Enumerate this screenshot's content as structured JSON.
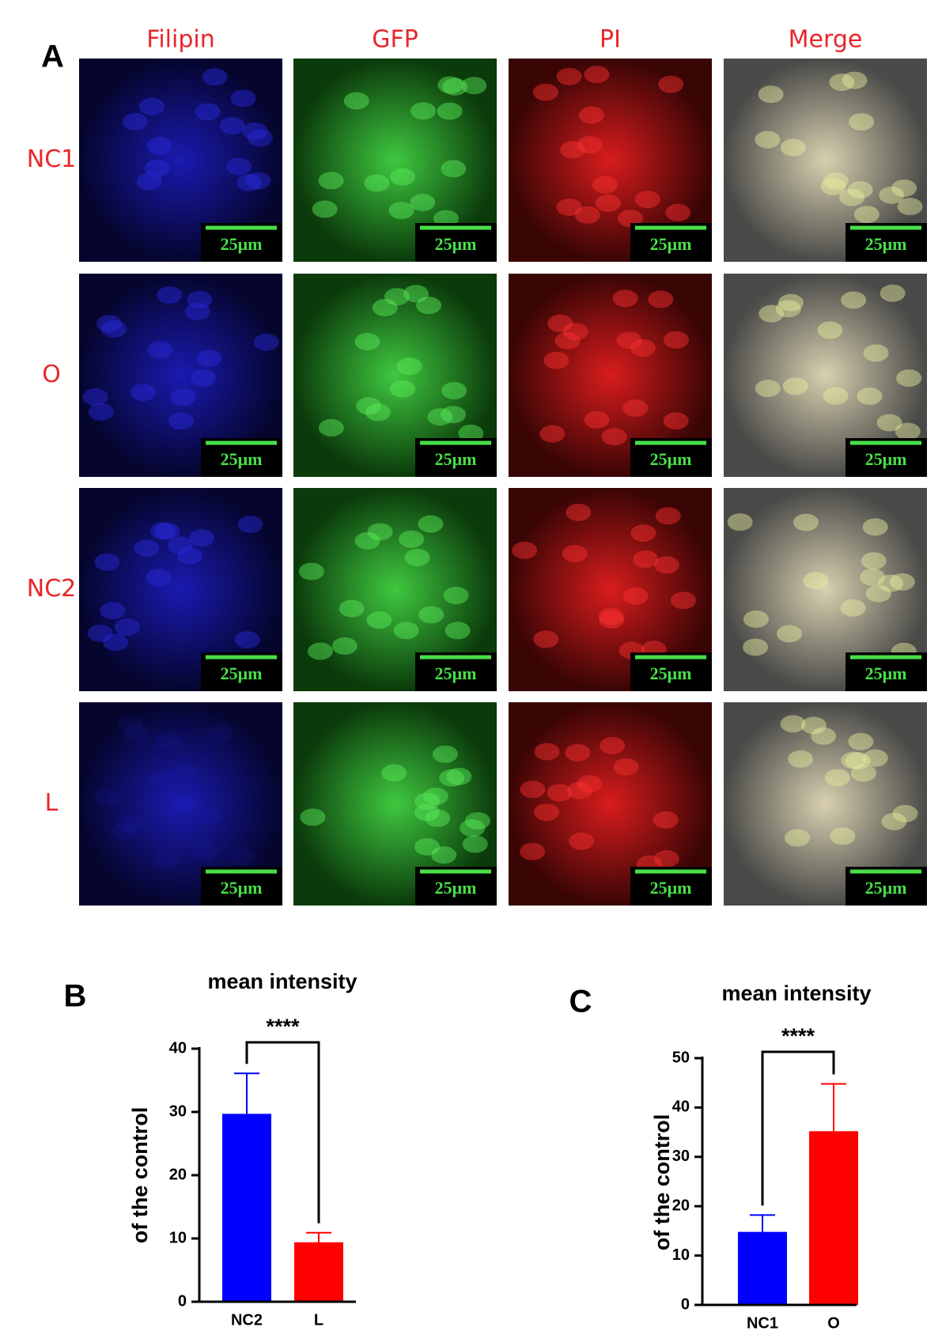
{
  "panel_a": {
    "label": "A",
    "columns": [
      "Filipin",
      "GFP",
      "PI",
      "Merge"
    ],
    "rows": [
      "NC1",
      "O",
      "NC2",
      "L"
    ],
    "scale_bar": "25μm"
  },
  "chart_data": [
    {
      "type": "bar",
      "panel_label": "B",
      "title": "mean intensity",
      "y_label": "of the control",
      "annotation": "****",
      "categories": [
        "NC2",
        "L"
      ],
      "values": [
        29.7,
        9.4
      ],
      "errors": [
        6.4,
        1.5
      ],
      "colors": [
        "#0000ff",
        "#ff0000"
      ],
      "ylim": [
        0,
        40
      ],
      "yticks": [
        0,
        10,
        20,
        30,
        40
      ]
    },
    {
      "type": "bar",
      "panel_label": "C",
      "title": "mean intensity",
      "y_label": "of the control",
      "annotation": "****",
      "categories": [
        "NC1",
        "O"
      ],
      "values": [
        14.8,
        35.2
      ],
      "errors": [
        3.4,
        9.6
      ],
      "colors": [
        "#0000ff",
        "#ff0000"
      ],
      "ylim": [
        0,
        50
      ],
      "yticks": [
        0,
        10,
        20,
        30,
        40,
        50
      ]
    }
  ]
}
